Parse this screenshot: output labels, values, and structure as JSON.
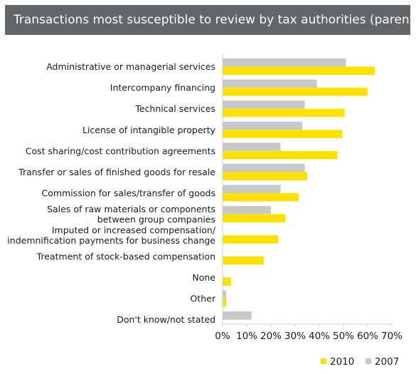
{
  "header": {
    "title": "Transactions most susceptible to review by tax authorities (parents)"
  },
  "chart_data": {
    "type": "bar",
    "orientation": "horizontal",
    "title": "Transactions most susceptible to review by tax authorities (parents)",
    "categories": [
      [
        "Administrative or managerial services"
      ],
      [
        "Intercompany financing"
      ],
      [
        "Technical services"
      ],
      [
        "License of intangible property"
      ],
      [
        "Cost sharing/cost contribution agreements"
      ],
      [
        "Transfer or sales of finished goods for resale"
      ],
      [
        "Commission for sales/transfer of goods"
      ],
      [
        "Sales of raw materials or components",
        "between group companies"
      ],
      [
        "Imputed or increased compensation/",
        "indemnification payments for business change"
      ],
      [
        "Treatment of stock-based compensation"
      ],
      [
        "None"
      ],
      [
        "Other"
      ],
      [
        "Don't know/not stated"
      ]
    ],
    "series": [
      {
        "name": "2007",
        "color": "#c8c8c8",
        "values": [
          51,
          39,
          34,
          33,
          24,
          34,
          24,
          20,
          null,
          null,
          null,
          1.5,
          12
        ]
      },
      {
        "name": "2010",
        "color": "#ffe100",
        "values": [
          63,
          60,
          50.5,
          49.5,
          47.5,
          35,
          31.5,
          26,
          23,
          17,
          3.5,
          1.5,
          null
        ]
      }
    ],
    "xlim": [
      0,
      70
    ],
    "xticks": [
      "0%",
      "10%",
      "20%",
      "30%",
      "40%",
      "50%",
      "60%",
      "70%"
    ],
    "legend": {
      "position": "bottom-right",
      "order": [
        "2010",
        "2007"
      ]
    },
    "grid": false
  }
}
